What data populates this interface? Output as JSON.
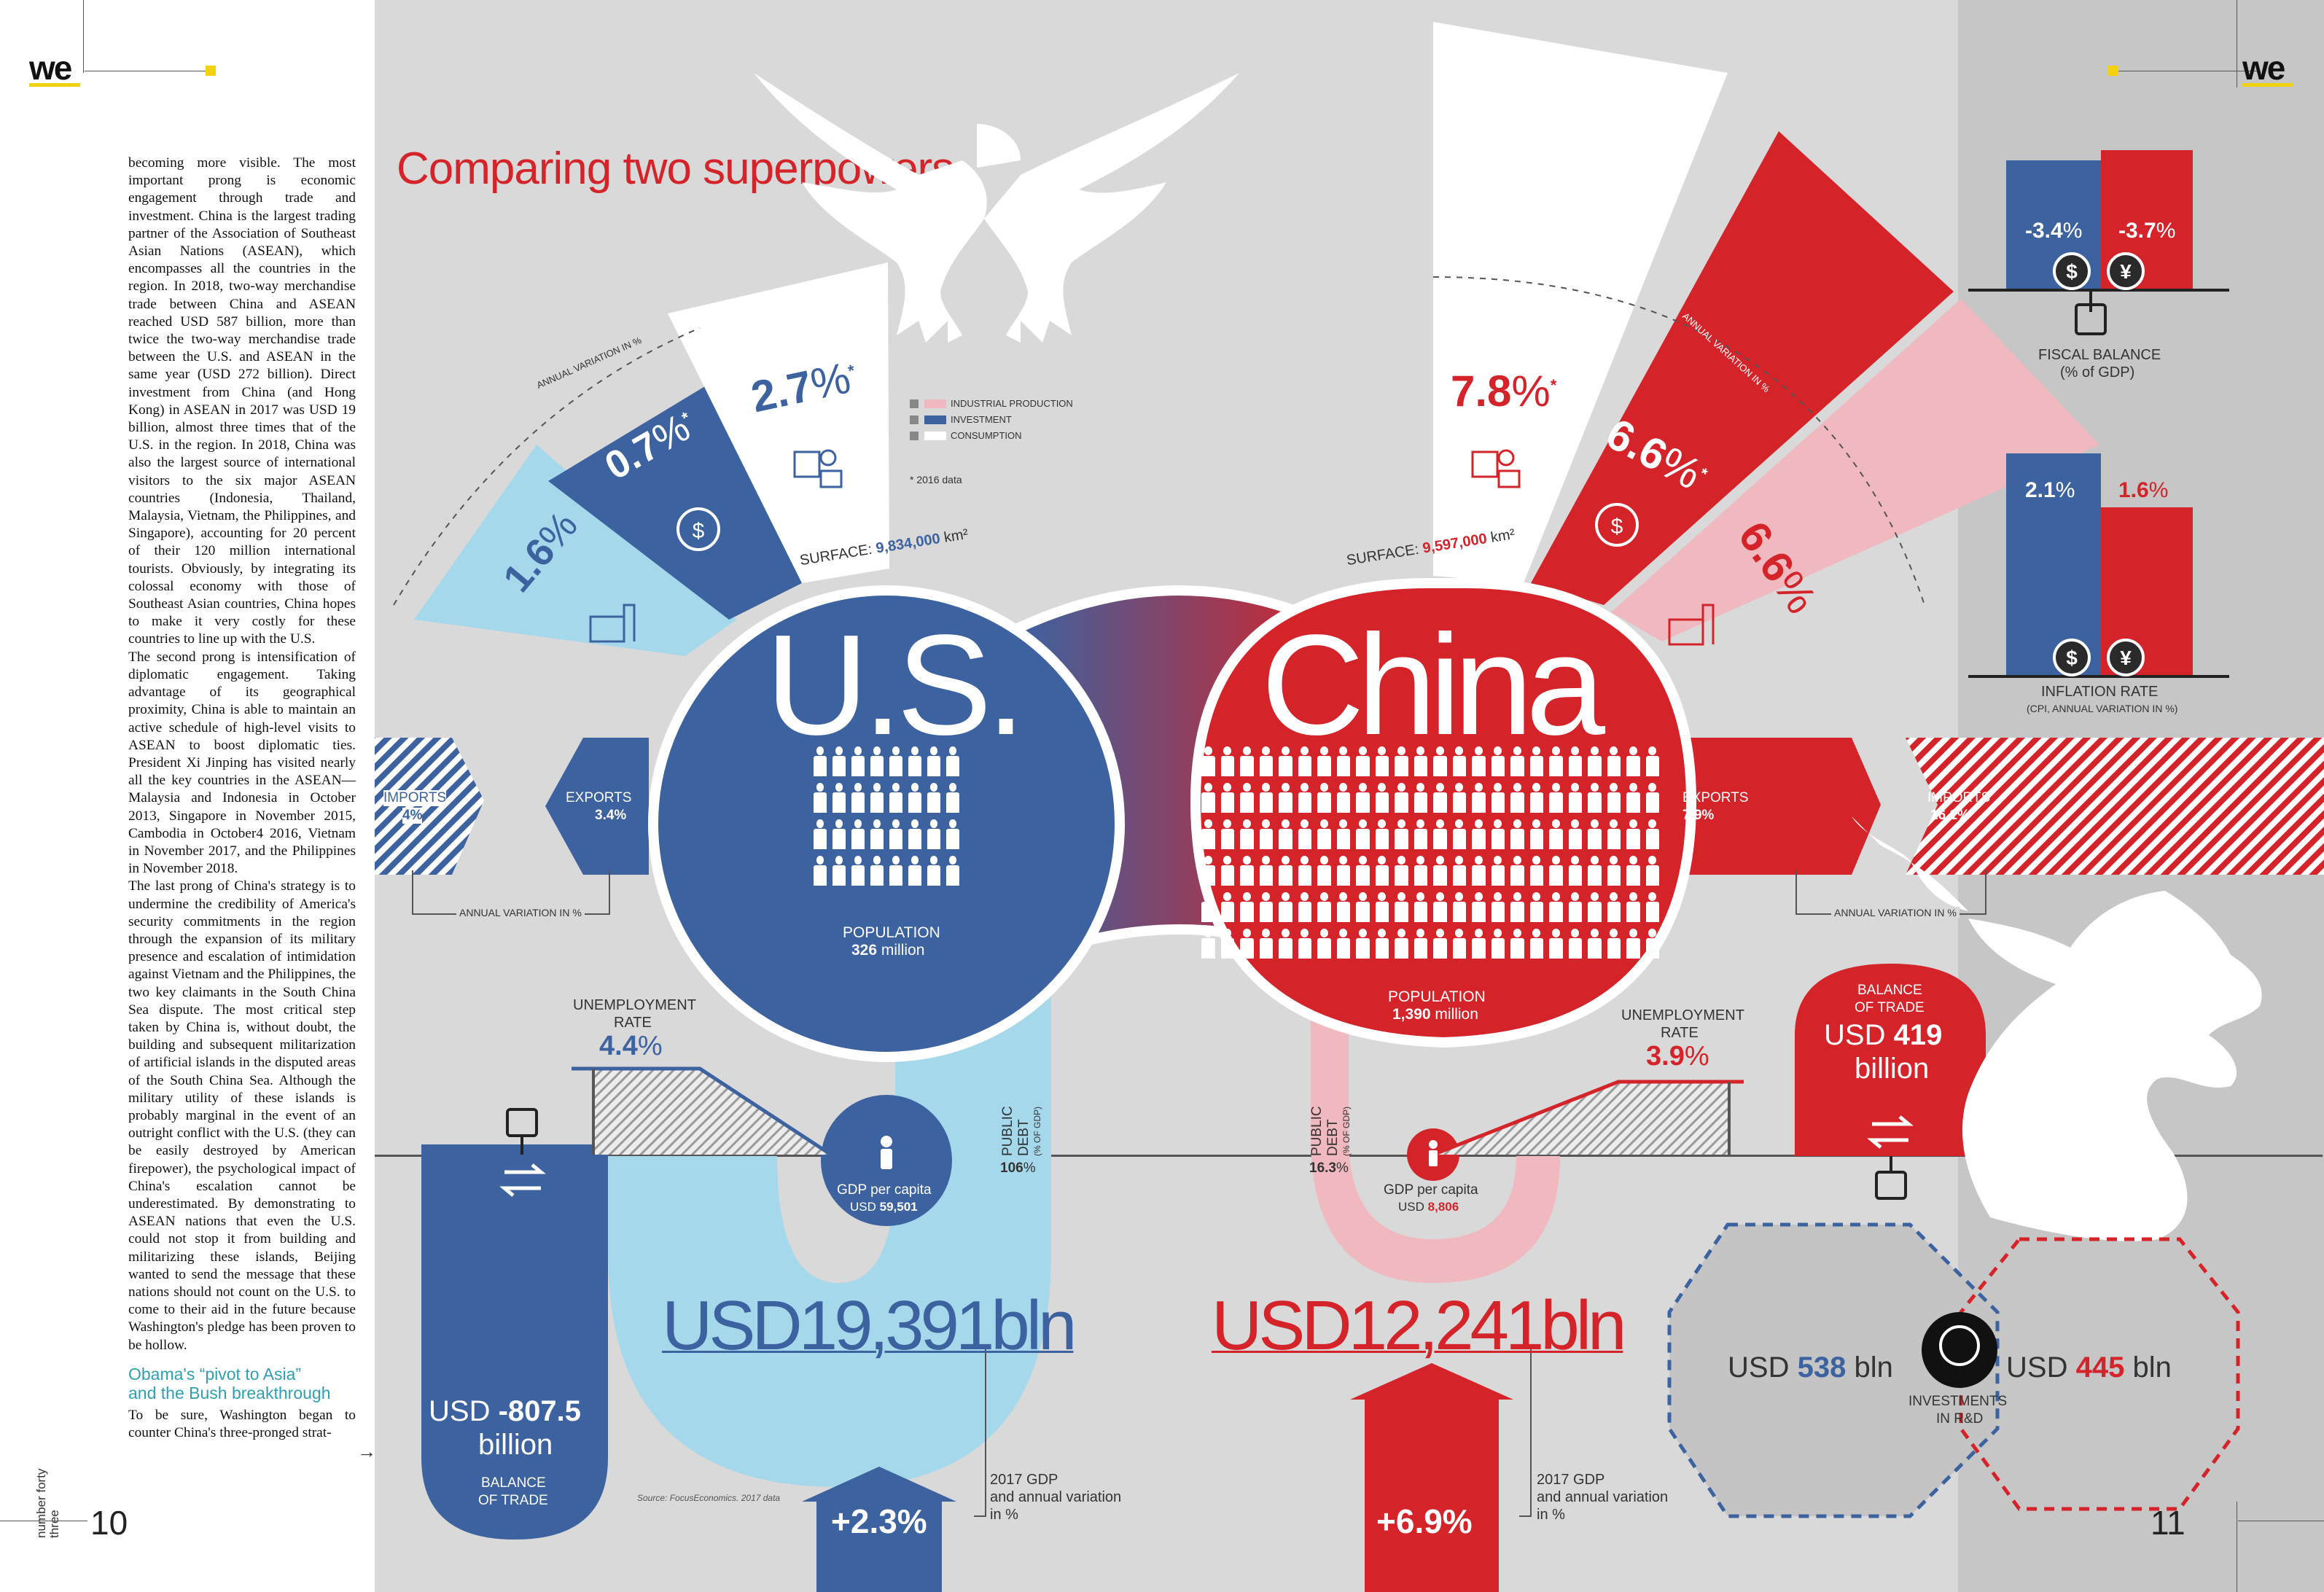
{
  "header": {
    "logo_left": "we",
    "logo_right": "we"
  },
  "title": "Comparing two superpowers",
  "article": {
    "paragraphs": [
      "becoming more visible. The most important prong is economic engagement through trade and investment. China is the largest trading partner of the Association of Southeast Asian Nations (ASEAN), which encompasses all the countries in the region. In 2018, two-way merchandise trade between China and ASEAN reached USD 587 billion, more than twice the two-way merchandise trade between the U.S. and ASEAN in the same year (USD 272 billion). Direct investment from China (and Hong Kong) in ASEAN in 2017 was USD 19 billion, almost three times that of the U.S. in the region. In 2018, China was also the largest source of international visitors to the six major ASEAN countries (Indonesia, Thailand, Malaysia, Vietnam, the Philippines, and Singapore), accounting for 20 percent of their 120 million international tourists. Obviously, by integrating its colossal economy with those of Southeast Asian countries, China hopes to make it very costly for these countries to line up with the U.S.",
      "The second prong is intensification of diplomatic engagement. Taking advantage of its geographical proximity, China is able to maintain an active schedule of high-level visits to ASEAN to boost diplomatic ties. President Xi Jinping has visited nearly all the key countries in the ASEAN—Malaysia and Indonesia in October 2013, Singapore in November 2015, Cambodia in October4 2016, Vietnam in November 2017, and the Philippines in November 2018.",
      "The last prong of China's strategy is to undermine the credibility of America's security commitments in the region through the expansion of its military presence and escalation of intimidation against Vietnam and the Philippines, the two key claimants in the South China Sea dispute. The most critical step taken by China is, without doubt, the building and subsequent militarization of artificial islands in the disputed areas of the South China Sea. Although the military utility of these islands is probably marginal in the event of an outright conflict with the U.S. (they can be easily destroyed by American firepower), the psychological impact of China's escalation cannot be underestimated. By demonstrating to ASEAN nations that even the U.S. could not stop it from building and militarizing these islands, Beijing wanted to send the message that these nations should not count on the U.S. to come to their aid in the future because Washington's pledge has been proven to be hollow."
    ],
    "subheading_line1": "Obama's “pivot to Asia”",
    "subheading_line2": "and the Bush breakthrough",
    "last_paragraph": "To be sure, Washington began to counter China's three-pronged strat-"
  },
  "footer": {
    "issue_label": "number forty three",
    "page_left": "10",
    "page_right": "11",
    "source": "Source: FocusEconomics. 2017 data"
  },
  "legend": {
    "items": [
      "INDUSTRIAL PRODUCTION",
      "INVESTMENT",
      "CONSUMPTION"
    ],
    "note": "* 2016 data"
  },
  "annual_variation_label": "ANNUAL VARIATION IN %",
  "us": {
    "name": "U.S.",
    "industrial": "1.6",
    "investment": "0.7",
    "consumption": "2.7",
    "surface_label": "SURFACE:",
    "surface_value": "9,834,000",
    "surface_unit": "km²",
    "imports_label": "IMPORTS",
    "imports_value": "4%",
    "exports_label": "EXPORTS",
    "exports_value": "3.4%",
    "population_label": "POPULATION",
    "population_value": "326",
    "population_unit": "million",
    "unemployment_label1": "UNEMPLOYMENT",
    "unemployment_label2": "RATE",
    "unemployment_value": "4.4",
    "gdp_pc_label": "GDP per capita",
    "gdp_pc_prefix": "USD",
    "gdp_pc_value": "59,501",
    "debt_label1": "PUBLIC",
    "debt_label2": "DEBT",
    "debt_label3": "(% OF GDP)",
    "debt_value": "106",
    "gdp_total": "USD19,391bln",
    "gdp_growth": "+2.3%",
    "balance_prefix": "USD",
    "balance_value": "-807.5",
    "balance_unit": "billion",
    "balance_label1": "BALANCE",
    "balance_label2": "OF TRADE",
    "rd_prefix": "USD",
    "rd_value": "538",
    "rd_unit": "bln",
    "fiscal": "-3.4",
    "inflation": "2.1"
  },
  "china": {
    "name": "China",
    "industrial": "6.6",
    "investment": "6.6",
    "consumption": "7.8",
    "surface_label": "SURFACE:",
    "surface_value": "9,597,000",
    "surface_unit": "km²",
    "imports_label": "IMPORTS",
    "imports_value": "16.1%",
    "exports_label": "EXPORTS",
    "exports_value": "7.9%",
    "population_label": "POPULATION",
    "population_value": "1,390",
    "population_unit": "million",
    "unemployment_label1": "UNEMPLOYMENT",
    "unemployment_label2": "RATE",
    "unemployment_value": "3.9",
    "gdp_pc_label": "GDP per capita",
    "gdp_pc_prefix": "USD",
    "gdp_pc_value": "8,806",
    "debt_label1": "PUBLIC",
    "debt_label2": "DEBT",
    "debt_label3": "(% OF GDP)",
    "debt_value": "16.3",
    "gdp_total": "USD12,241bln",
    "gdp_growth": "+6.9%",
    "balance_label1": "BALANCE",
    "balance_label2": "OF TRADE",
    "balance_prefix": "USD",
    "balance_value": "419",
    "balance_unit": "billion",
    "rd_prefix": "USD",
    "rd_value": "445",
    "rd_unit": "bln",
    "fiscal": "-3.7",
    "inflation": "1.6"
  },
  "gdp_caption": [
    "2017 GDP",
    "and annual variation",
    "in %"
  ],
  "rd_label1": "INVESTMENTS",
  "rd_label2": "IN R&D",
  "fiscal_label1": "FISCAL BALANCE",
  "fiscal_label2": "(% of GDP)",
  "inflation_label1": "INFLATION RATE",
  "inflation_label2": "(CPI, ANNUAL VARIATION IN %)",
  "pct": "%",
  "star": "*",
  "colors": {
    "us_blue": "#3d62a0",
    "us_light": "#a6d8ec",
    "china_red": "#d42329",
    "china_pink": "#f0b8bf",
    "gray": "#d7d7d7",
    "gray_dark": "#c4c4c4",
    "yellow": "#f2d20f"
  }
}
